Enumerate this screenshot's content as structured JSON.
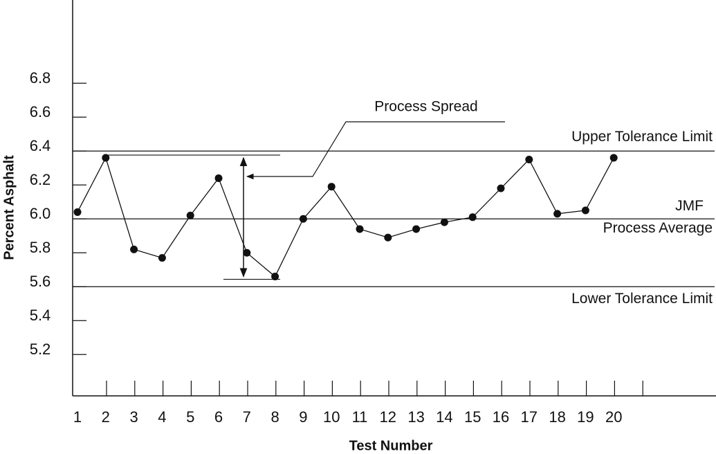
{
  "chart_data": {
    "type": "line",
    "x_label": "Test Number",
    "y_label": "Percent Asphalt",
    "categories": [
      "1",
      "2",
      "3",
      "4",
      "5",
      "6",
      "7",
      "8",
      "9",
      "10",
      "11",
      "12",
      "13",
      "14",
      "15",
      "16",
      "17",
      "18",
      "19",
      "20"
    ],
    "values": [
      6.04,
      6.36,
      5.82,
      5.77,
      6.02,
      6.24,
      5.8,
      5.66,
      6.0,
      6.19,
      5.94,
      5.89,
      5.94,
      5.98,
      6.01,
      6.18,
      6.35,
      6.03,
      6.05,
      6.36
    ],
    "color": "#111111",
    "ylim": [
      4.95,
      7.25
    ],
    "yticks": [
      {
        "value": 5.2,
        "label": "5.2"
      },
      {
        "value": 5.4,
        "label": "5.4"
      },
      {
        "value": 5.6,
        "label": "5.6"
      },
      {
        "value": 5.8,
        "label": "5.8"
      },
      {
        "value": 6.0,
        "label": "6.0"
      },
      {
        "value": 6.2,
        "label": "6.2"
      },
      {
        "value": 6.4,
        "label": "6.4"
      },
      {
        "value": 6.6,
        "label": "6.6"
      },
      {
        "value": 6.8,
        "label": "6.8"
      }
    ],
    "reference_lines": [
      {
        "value": 6.4,
        "labels": [
          "Upper Tolerance Limit"
        ]
      },
      {
        "value": 6.0,
        "labels": [
          "JMF",
          "Process Average"
        ]
      },
      {
        "value": 5.6,
        "labels": [
          "Lower Tolerance Limit"
        ]
      }
    ],
    "annotation": "Process Spread"
  }
}
